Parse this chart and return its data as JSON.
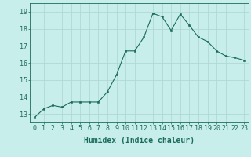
{
  "x": [
    0,
    1,
    2,
    3,
    4,
    5,
    6,
    7,
    8,
    9,
    10,
    11,
    12,
    13,
    14,
    15,
    16,
    17,
    18,
    19,
    20,
    21,
    22,
    23
  ],
  "y": [
    12.8,
    13.3,
    13.5,
    13.4,
    13.7,
    13.7,
    13.7,
    13.7,
    14.3,
    15.3,
    16.7,
    16.7,
    17.5,
    18.9,
    18.7,
    17.9,
    18.85,
    18.2,
    17.5,
    17.25,
    16.7,
    16.4,
    16.3,
    16.15
  ],
  "line_color": "#1a6b5a",
  "marker_color": "#1a6b5a",
  "bg_color": "#c8eeec",
  "grid_color": "#b0d8d5",
  "xlabel": "Humidex (Indice chaleur)",
  "ylabel_ticks": [
    13,
    14,
    15,
    16,
    17,
    18,
    19
  ],
  "xtick_labels": [
    "0",
    "1",
    "2",
    "3",
    "4",
    "5",
    "6",
    "7",
    "8",
    "9",
    "10",
    "11",
    "12",
    "13",
    "14",
    "15",
    "16",
    "17",
    "18",
    "19",
    "20",
    "21",
    "22",
    "23"
  ],
  "xlim": [
    -0.5,
    23.5
  ],
  "ylim": [
    12.5,
    19.5
  ],
  "tick_color": "#1a6b5a",
  "label_color": "#1a6b5a",
  "xlabel_fontsize": 7,
  "tick_fontsize": 6
}
